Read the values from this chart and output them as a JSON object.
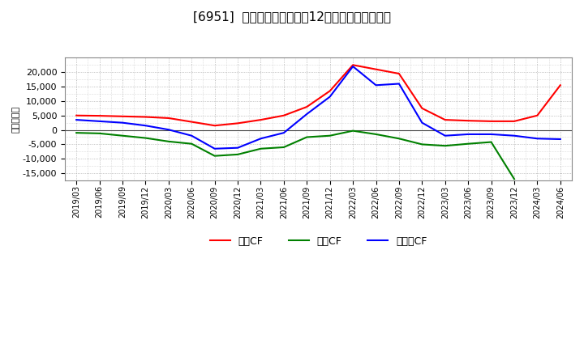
{
  "title": "[6951]  キャッシュフローの12か月移動合計の推移",
  "ylabel": "（百万円）",
  "background_color": "#ffffff",
  "plot_bg_color": "#f0f0f0",
  "grid_color": "#aaaaaa",
  "x_labels": [
    "2019/03",
    "2019/06",
    "2019/09",
    "2019/12",
    "2020/03",
    "2020/06",
    "2020/09",
    "2020/12",
    "2021/03",
    "2021/06",
    "2021/09",
    "2021/12",
    "2022/03",
    "2022/06",
    "2022/09",
    "2022/12",
    "2023/03",
    "2023/06",
    "2023/09",
    "2023/12",
    "2024/03",
    "2024/06"
  ],
  "operating_cf": [
    5000,
    4900,
    4700,
    4500,
    4100,
    2800,
    1500,
    2300,
    3500,
    5000,
    8000,
    13500,
    22500,
    21000,
    19500,
    7500,
    3500,
    3200,
    3000,
    3000,
    5000,
    15500
  ],
  "investing_cf": [
    -1000,
    -1200,
    -2000,
    -2800,
    -4000,
    -4800,
    -9000,
    -8500,
    -6500,
    -6000,
    -2500,
    -2000,
    -300,
    -1500,
    -3000,
    -5000,
    -5500,
    -4800,
    -4200,
    -17000,
    null,
    null
  ],
  "free_cf": [
    3500,
    3000,
    2500,
    1500,
    100,
    -2000,
    -6500,
    -6200,
    -3000,
    -1000,
    5500,
    11500,
    22000,
    15500,
    16000,
    2500,
    -2000,
    -1500,
    -1500,
    -2000,
    -3000,
    -3200
  ],
  "ylim": [
    -17500,
    25000
  ],
  "yticks": [
    -15000,
    -10000,
    -5000,
    0,
    5000,
    10000,
    15000,
    20000
  ],
  "line_colors": {
    "operating": "#ff0000",
    "investing": "#008000",
    "free": "#0000ff"
  },
  "legend_labels": {
    "operating": "営業CF",
    "investing": "投資CF",
    "free": "フリーCF"
  }
}
